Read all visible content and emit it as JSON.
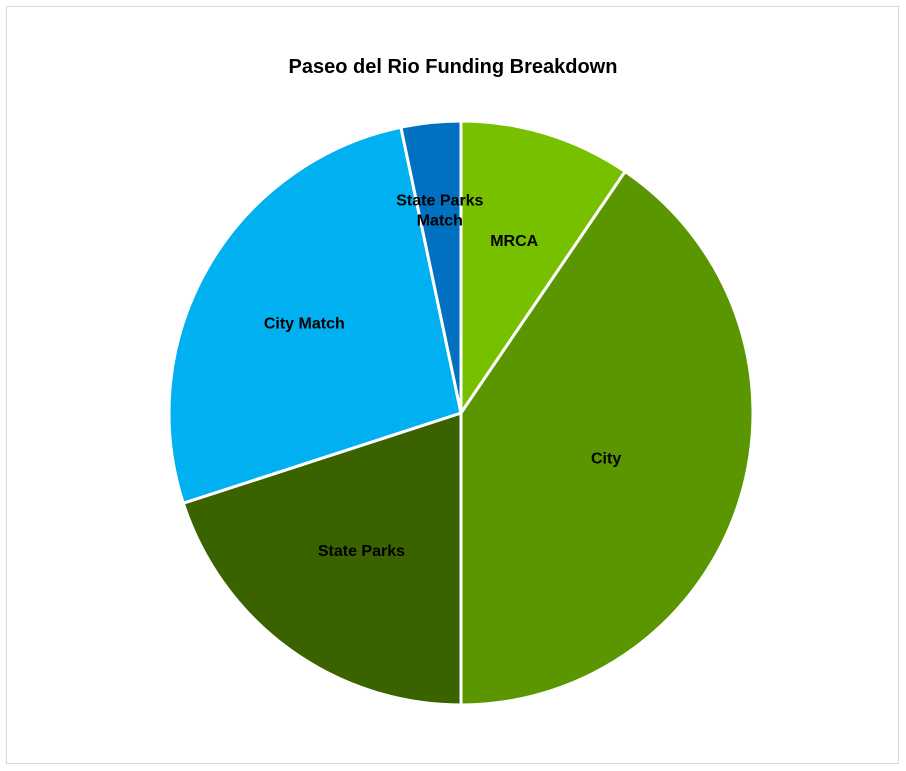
{
  "chart_data": {
    "type": "pie",
    "title": "Paseo del Rio Funding Breakdown",
    "start_angle_deg": 0,
    "direction": "clockwise",
    "slices": [
      {
        "label": "MRCA",
        "label_lines": [
          "MRCA"
        ],
        "value": 9.5,
        "color": "#76C000"
      },
      {
        "label": "City",
        "label_lines": [
          "City"
        ],
        "value": 40.5,
        "color": "#5A9600"
      },
      {
        "label": "State Parks",
        "label_lines": [
          "State Parks"
        ],
        "value": 20.0,
        "color": "#3A6300"
      },
      {
        "label": "City Match",
        "label_lines": [
          "City Match"
        ],
        "value": 26.7,
        "color": "#00B0F0"
      },
      {
        "label": "State Parks Match",
        "label_lines": [
          "State Parks",
          "Match"
        ],
        "value": 3.3,
        "color": "#0070C0"
      }
    ],
    "legend": "none",
    "data_labels": "inside"
  }
}
